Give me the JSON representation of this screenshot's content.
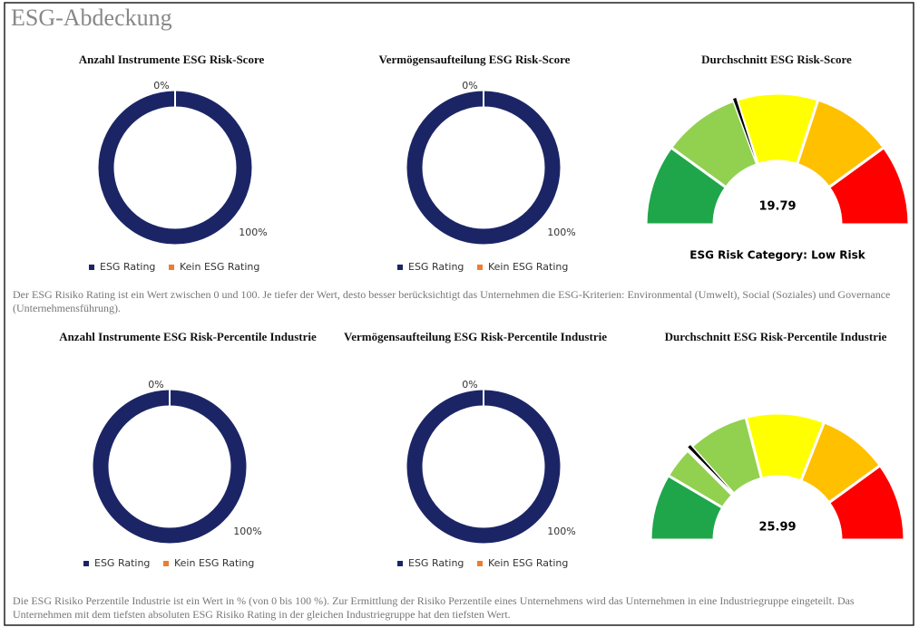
{
  "title": "ESG-Abdeckung",
  "chart_data": [
    {
      "type": "donut",
      "title": "Anzahl Instrumente ESG Risk-Score",
      "categories": [
        "ESG Rating",
        "Kein ESG Rating"
      ],
      "values": [
        100,
        0
      ],
      "value_labels": [
        "100%",
        "0%"
      ],
      "colors": [
        "#1b2566",
        "#ed7d31"
      ],
      "legend": "bottom"
    },
    {
      "type": "donut",
      "title": "Vermögensaufteilung ESG Risk-Score",
      "categories": [
        "ESG Rating",
        "Kein ESG Rating"
      ],
      "values": [
        100,
        0
      ],
      "value_labels": [
        "100%",
        "0%"
      ],
      "colors": [
        "#1b2566",
        "#ed7d31"
      ],
      "legend": "bottom"
    },
    {
      "type": "gauge",
      "title": "Durchschnitt ESG Risk-Score",
      "value": 19.79,
      "bins": [
        0,
        10,
        20,
        30,
        40,
        50
      ],
      "colors": [
        "#1fa64a",
        "#92d050",
        "#ffff00",
        "#ffc000",
        "#ff0000"
      ],
      "caption": "ESG Risk Category: Low Risk"
    },
    {
      "type": "donut",
      "title": "Anzahl Instrumente ESG Risk-Percentile Industrie",
      "categories": [
        "ESG Rating",
        "Kein ESG Rating"
      ],
      "values": [
        100,
        0
      ],
      "value_labels": [
        "100%",
        "0%"
      ],
      "colors": [
        "#1b2566",
        "#ed7d31"
      ],
      "legend": "bottom"
    },
    {
      "type": "donut",
      "title": "Vermögensaufteilung ESG Risk-Percentile Industrie",
      "categories": [
        "ESG Rating",
        "Kein ESG Rating"
      ],
      "values": [
        100,
        0
      ],
      "value_labels": [
        "100%",
        "0%"
      ],
      "colors": [
        "#1b2566",
        "#ed7d31"
      ],
      "legend": "bottom"
    },
    {
      "type": "gauge",
      "title": "Durchschnitt ESG Risk-Percentile Industrie",
      "value": 25.99,
      "bins": [
        0,
        17,
        25,
        42,
        62,
        80,
        100
      ],
      "colors": [
        "#1fa64a",
        "#92d050",
        "#92d050",
        "#ffff00",
        "#ffc000",
        "#ff0000"
      ]
    }
  ],
  "notes": [
    "Der ESG Risiko Rating ist ein Wert zwischen 0 und 100. Je tiefer der Wert, desto besser berücksichtigt das Unternehmen die ESG-Kriterien: Environmental (Umwelt), Social (Soziales) und Governance (Unternehmensführung).",
    "Die ESG Risiko Perzentile Industrie ist ein Wert in % (von 0 bis 100 %). Zur Ermittlung der Risiko Perzentile eines Unternehmens wird das Unternehmen in eine Industriegruppe eingeteilt. Das Unternehmen mit dem tiefsten absoluten ESG Risiko Rating in der gleichen Industriegruppe hat den tiefsten Wert."
  ]
}
